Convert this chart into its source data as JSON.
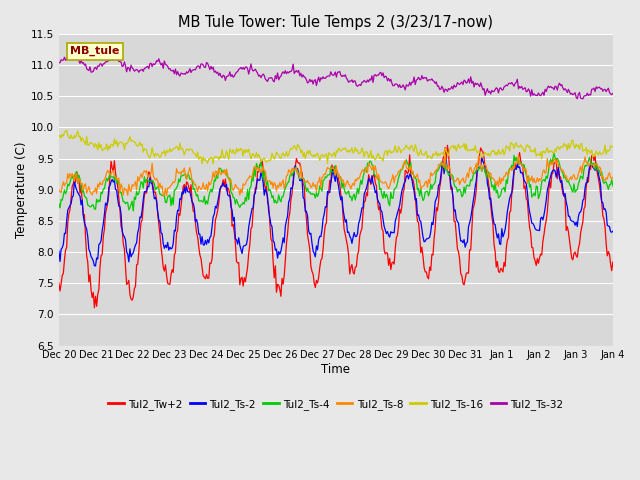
{
  "title": "MB Tule Tower: Tule Temps 2 (3/23/17-now)",
  "xlabel": "Time",
  "ylabel": "Temperature (C)",
  "ylim": [
    6.5,
    11.5
  ],
  "yticks": [
    6.5,
    7.0,
    7.5,
    8.0,
    8.5,
    9.0,
    9.5,
    10.0,
    10.5,
    11.0,
    11.5
  ],
  "fig_bg_color": "#e8e8e8",
  "plot_bg_color": "#d8d8d8",
  "legend_label": "MB_tule",
  "series_colors": {
    "Tul2_Tw+2": "#ff0000",
    "Tul2_Ts-2": "#0000ff",
    "Tul2_Ts-4": "#00cc00",
    "Tul2_Ts-8": "#ff8800",
    "Tul2_Ts-16": "#cccc00",
    "Tul2_Ts-32": "#aa00aa"
  },
  "x_tick_labels": [
    "Dec 20",
    "Dec 21",
    "Dec 22",
    "Dec 23",
    "Dec 24",
    "Dec 25",
    "Dec 26",
    "Dec 27",
    "Dec 28",
    "Dec 29",
    "Dec 30",
    "Dec 31",
    "Jan 1",
    "Jan 2",
    "Jan 3",
    "Jan 4"
  ],
  "n_points": 500,
  "days": 15
}
